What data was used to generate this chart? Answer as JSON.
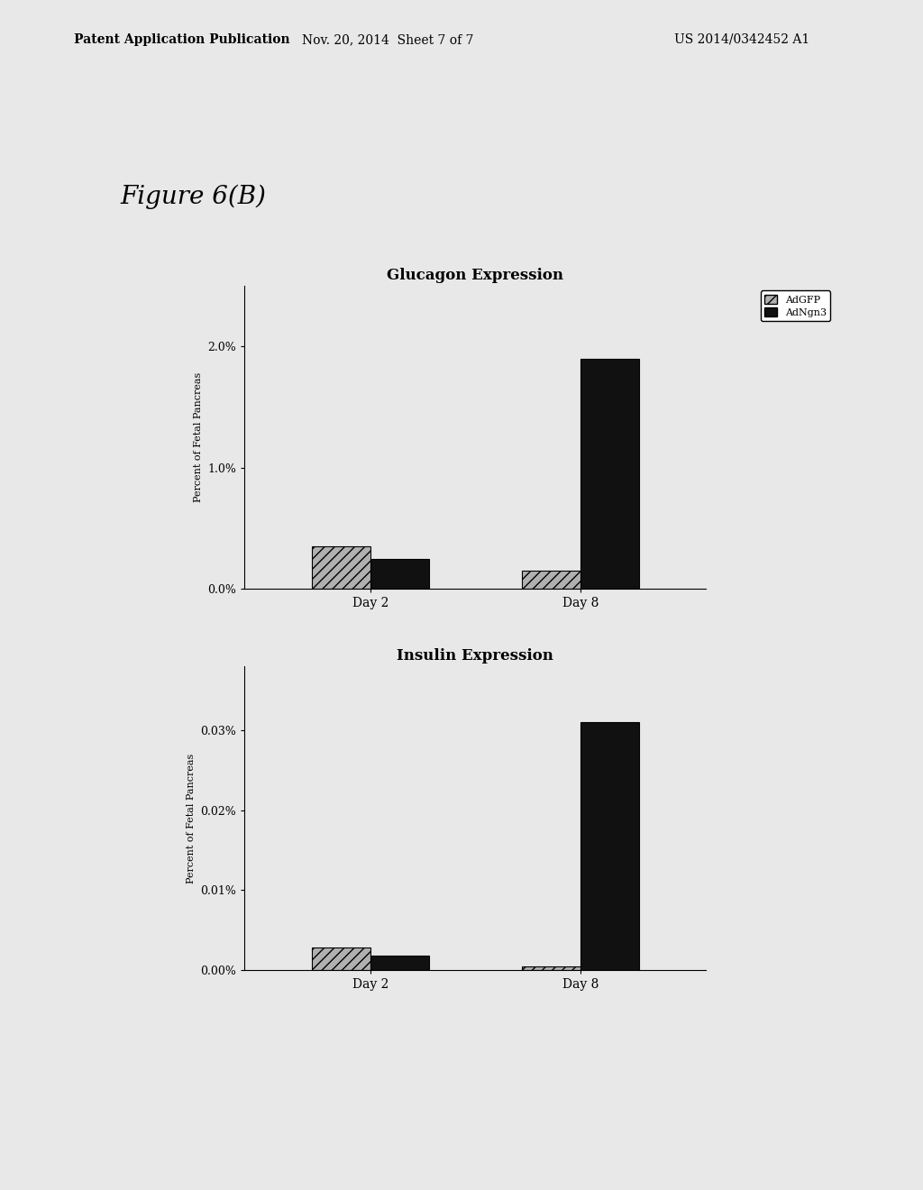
{
  "fig_label": "Figure 6(B)",
  "header_left": "Patent Application Publication",
  "header_middle": "Nov. 20, 2014  Sheet 7 of 7",
  "header_right": "US 2014/0342452 A1",
  "chart1": {
    "title": "Glucagon Expression",
    "ylabel": "Percent of Fetal Pancreas",
    "categories": [
      "Day 2",
      "Day 8"
    ],
    "adgfp_values": [
      0.0035,
      0.0015
    ],
    "adngn3_values": [
      0.0025,
      0.019
    ],
    "ylim": [
      0,
      0.025
    ],
    "yticks": [
      0.0,
      0.01,
      0.02
    ],
    "yticklabels": [
      "0.0%",
      "1.0%",
      "2.0%"
    ],
    "adgfp_color": "#b0b0b0",
    "adngn3_color": "#111111",
    "adgfp_hatch": "///",
    "adngn3_hatch": ""
  },
  "chart2": {
    "title": "Insulin Expression",
    "ylabel": "Percent of Fetal Pancreas",
    "categories": [
      "Day 2",
      "Day 8"
    ],
    "adgfp_values": [
      2.8e-05,
      4e-06
    ],
    "adngn3_values": [
      1.8e-05,
      0.00031
    ],
    "ylim": [
      0,
      0.00038
    ],
    "yticks": [
      0.0,
      0.0001,
      0.0002,
      0.0003
    ],
    "yticklabels": [
      "0.00%",
      "0.01%",
      "0.02%",
      "0.03%"
    ],
    "adgfp_color": "#b0b0b0",
    "adngn3_color": "#111111",
    "adgfp_hatch": "///",
    "adngn3_hatch": ""
  },
  "legend_labels": [
    "AdGFP",
    "AdNgn3"
  ],
  "page_color": "#e8e8e8"
}
